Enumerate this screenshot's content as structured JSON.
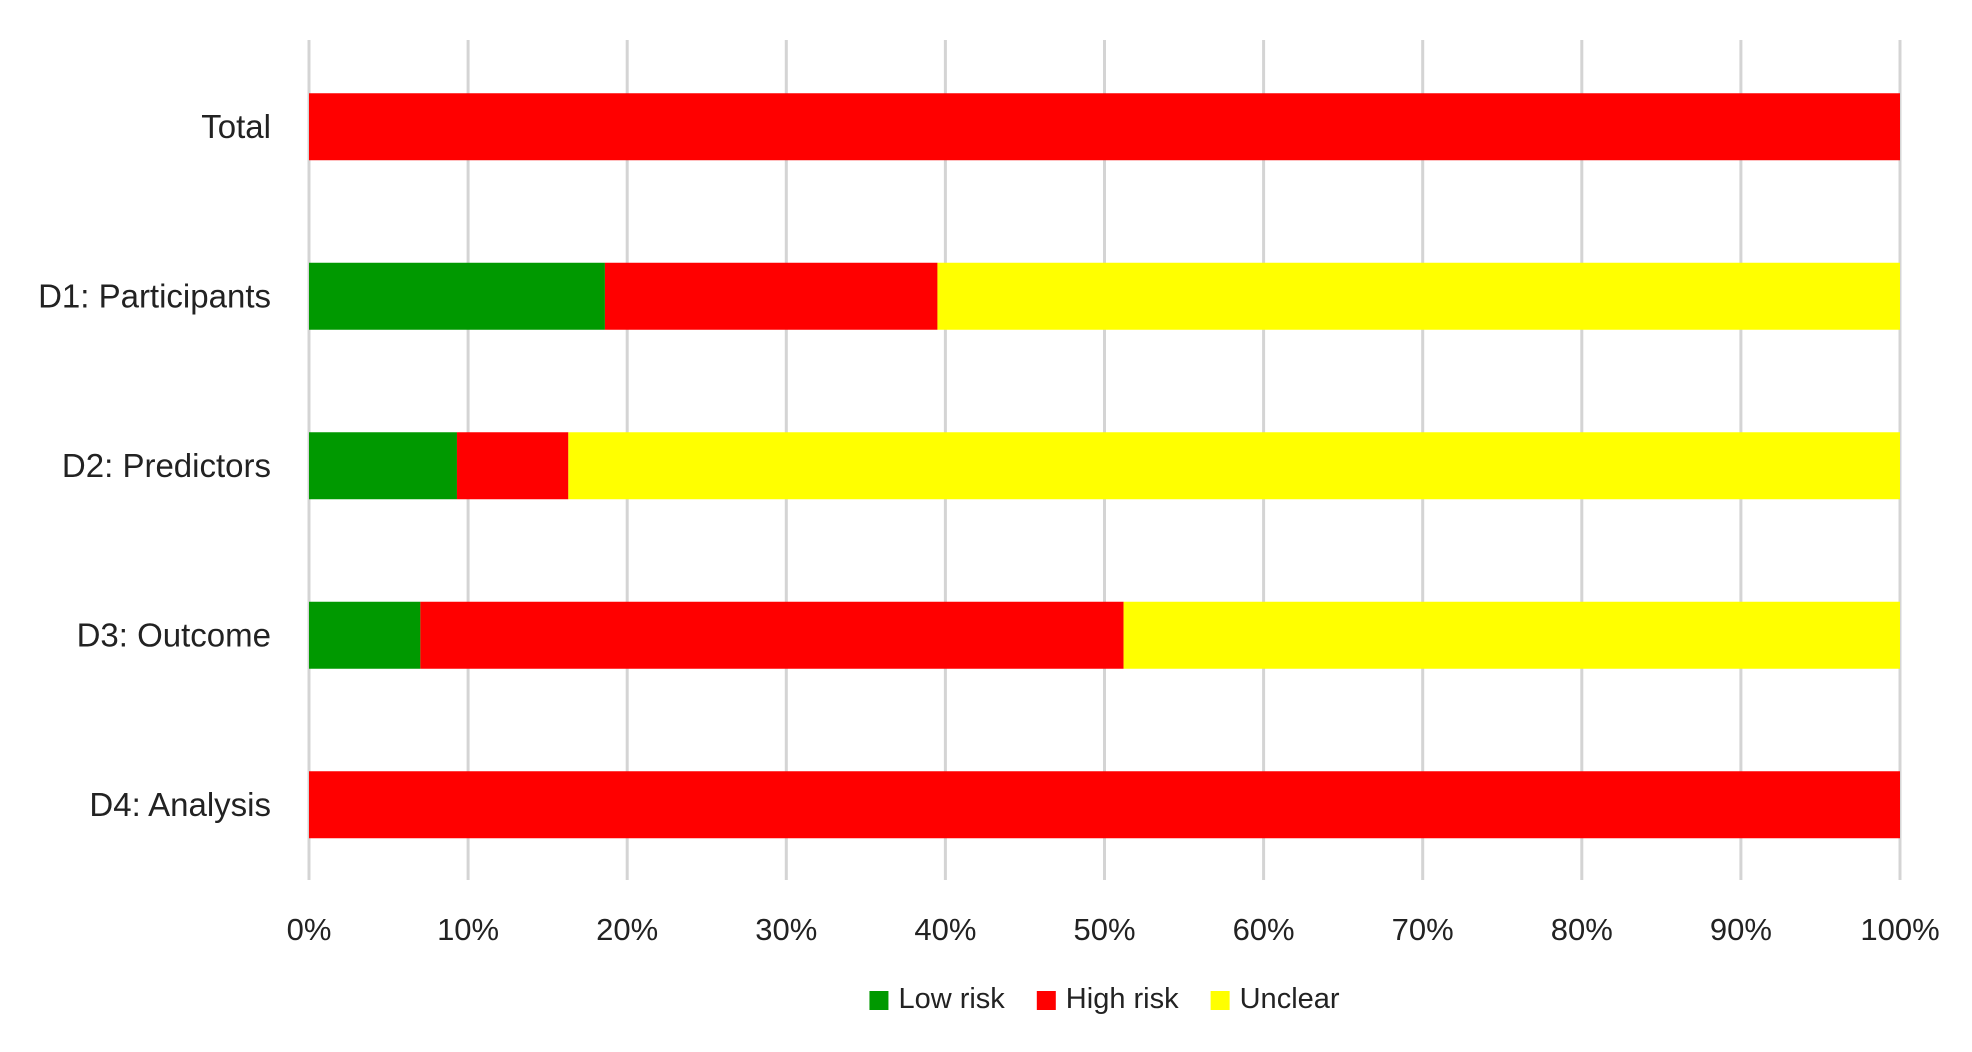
{
  "chart_data": {
    "type": "bar",
    "orientation": "horizontal",
    "stacked": true,
    "categories": [
      "Total",
      "D1: Participants",
      "D2: Predictors",
      "D3: Outcome",
      "D4: Analysis"
    ],
    "series": [
      {
        "name": "Low risk",
        "color": "#009900",
        "values": [
          0,
          18.6,
          9.3,
          7.0,
          0
        ]
      },
      {
        "name": "High risk",
        "color": "#ff0000",
        "values": [
          100,
          20.9,
          7.0,
          44.2,
          100
        ]
      },
      {
        "name": "Unclear",
        "color": "#ffff00",
        "values": [
          0,
          60.5,
          83.7,
          48.8,
          0
        ]
      }
    ],
    "xlim": [
      0,
      100
    ],
    "x_ticks": [
      "0%",
      "10%",
      "20%",
      "30%",
      "40%",
      "50%",
      "60%",
      "70%",
      "80%",
      "90%",
      "100%"
    ],
    "grid": true,
    "legend_position": "bottom",
    "title": "",
    "xlabel": "",
    "ylabel": ""
  }
}
